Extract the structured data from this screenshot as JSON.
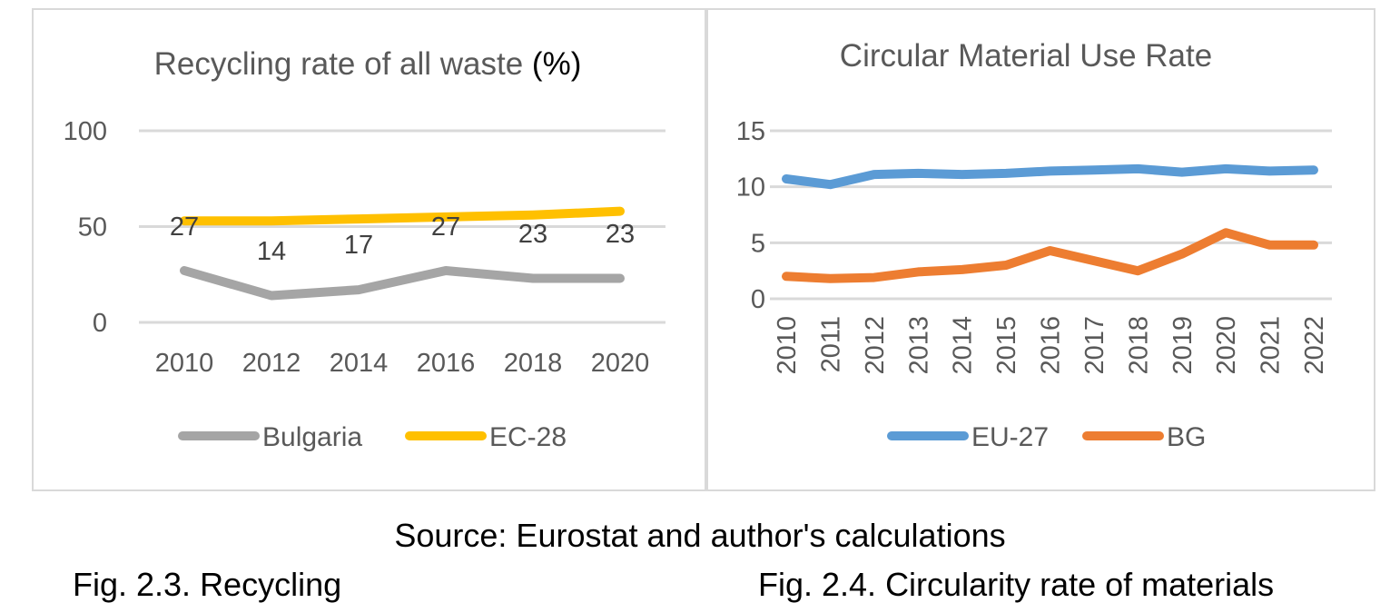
{
  "chart_data": [
    {
      "type": "line",
      "title": "Recycling rate of all waste (%)",
      "title_main": "Recycling rate of all waste ",
      "title_unit": "(%)",
      "x": [
        "2010",
        "2012",
        "2014",
        "2016",
        "2018",
        "2020"
      ],
      "series": [
        {
          "name": "Bulgaria",
          "color": "#a5a5a5",
          "values": [
            27,
            14,
            17,
            27,
            23,
            23
          ],
          "data_labels": [
            "27",
            "14",
            "17",
            "27",
            "23",
            "23"
          ]
        },
        {
          "name": "EC-28",
          "color": "#ffc000",
          "values": [
            53,
            53,
            54,
            55,
            56,
            58
          ]
        }
      ],
      "yticks": [
        "0",
        "50",
        "100"
      ],
      "ylim": [
        0,
        100
      ],
      "xlabel": "",
      "ylabel": "",
      "grid": true,
      "legend": "bottom"
    },
    {
      "type": "line",
      "title": "Circular Material Use Rate",
      "x": [
        "2010",
        "2011",
        "2012",
        "2013",
        "2014",
        "2015",
        "2016",
        "2017",
        "2018",
        "2019",
        "2020",
        "2021",
        "2022"
      ],
      "series": [
        {
          "name": "EU-27",
          "color": "#5b9bd5",
          "values": [
            10.7,
            10.2,
            11.1,
            11.2,
            11.1,
            11.2,
            11.4,
            11.5,
            11.6,
            11.3,
            11.6,
            11.4,
            11.5
          ]
        },
        {
          "name": "BG",
          "color": "#ed7d31",
          "values": [
            2.0,
            1.8,
            1.9,
            2.4,
            2.6,
            3.0,
            4.3,
            3.4,
            2.5,
            4.0,
            5.9,
            4.8,
            4.8
          ]
        }
      ],
      "yticks": [
        "0",
        "5",
        "10",
        "15"
      ],
      "ylim": [
        0,
        15
      ],
      "xlabel": "",
      "ylabel": "",
      "grid": true,
      "xtick_rotation": "vertical",
      "legend": "bottom"
    }
  ],
  "caption": {
    "source": "Source: Eurostat and author's calculations",
    "left_fig_partial": "Fig. 2.3. Recycling",
    "right_fig_partial": "Fig. 2.4. Circularity rate of materials"
  },
  "colors": {
    "frame": "#d9d9d9",
    "grid": "#d9d9d9",
    "text": "#595959"
  }
}
